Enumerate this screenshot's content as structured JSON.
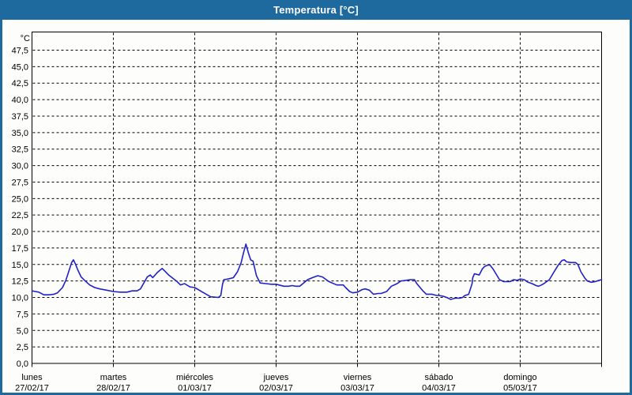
{
  "window": {
    "title": "Temperatura [°C]"
  },
  "colors": {
    "titlebar_bg": "#1e6a9e",
    "frame_border": "#1e6a9e",
    "chart_bg": "#fdfdfc",
    "plot_border": "#000000",
    "grid": "#000000",
    "text": "#000000",
    "series_line": "#2121c8"
  },
  "chart_data": {
    "type": "line",
    "title": "Temperatura [°C]",
    "grid": "dashed, horizontal every 2.5 °C and vertical at day boundaries",
    "legend": "none",
    "y_axis": {
      "unit_label": "°C",
      "min": 0,
      "max": 50,
      "tick_min": 0,
      "tick_max": 47.5,
      "tick_step": 2.5,
      "decimal_separator": ","
    },
    "x_axis": {
      "hours_total": 168,
      "days": [
        {
          "name": "lunes",
          "date": "27/02/17"
        },
        {
          "name": "martes",
          "date": "28/02/17"
        },
        {
          "name": "miércoles",
          "date": "01/03/17"
        },
        {
          "name": "jueves",
          "date": "02/03/17"
        },
        {
          "name": "viernes",
          "date": "03/03/17"
        },
        {
          "name": "sábado",
          "date": "04/03/17"
        },
        {
          "name": "domingo",
          "date": "05/03/17"
        }
      ]
    },
    "series": [
      {
        "name": "Temperatura",
        "color": "#2121c8",
        "points_hours_celsius": [
          [
            0,
            11.0
          ],
          [
            1,
            10.9
          ],
          [
            2,
            10.8
          ],
          [
            3.5,
            10.4
          ],
          [
            5,
            10.4
          ],
          [
            6.5,
            10.5
          ],
          [
            7.5,
            10.7
          ],
          [
            9,
            11.5
          ],
          [
            10,
            12.6
          ],
          [
            11,
            14.2
          ],
          [
            11.7,
            15.3
          ],
          [
            12.2,
            15.7
          ],
          [
            12.8,
            15.1
          ],
          [
            13.5,
            14.2
          ],
          [
            14.5,
            13.1
          ],
          [
            15.5,
            12.6
          ],
          [
            17,
            11.9
          ],
          [
            18.5,
            11.5
          ],
          [
            20,
            11.3
          ],
          [
            22,
            11.1
          ],
          [
            24,
            10.9
          ],
          [
            26,
            10.8
          ],
          [
            28,
            10.8
          ],
          [
            29.5,
            11.0
          ],
          [
            31,
            11.0
          ],
          [
            32,
            11.3
          ],
          [
            34,
            13.1
          ],
          [
            34.9,
            13.4
          ],
          [
            35.6,
            13.0
          ],
          [
            37,
            13.8
          ],
          [
            38.4,
            14.4
          ],
          [
            40.3,
            13.4
          ],
          [
            42.6,
            12.5
          ],
          [
            43.8,
            11.9
          ],
          [
            45,
            12.1
          ],
          [
            46.6,
            11.6
          ],
          [
            48,
            11.5
          ],
          [
            50.3,
            10.8
          ],
          [
            52.7,
            10.1
          ],
          [
            55,
            10.0
          ],
          [
            55.7,
            10.3
          ],
          [
            56.2,
            12.0
          ],
          [
            56.6,
            12.7
          ],
          [
            57.8,
            12.8
          ],
          [
            59.4,
            13.0
          ],
          [
            60.6,
            13.9
          ],
          [
            61.7,
            15.3
          ],
          [
            62.4,
            16.8
          ],
          [
            63.1,
            18.1
          ],
          [
            63.8,
            16.8
          ],
          [
            64.5,
            15.7
          ],
          [
            65.2,
            15.5
          ],
          [
            66.2,
            13.3
          ],
          [
            67.3,
            12.2
          ],
          [
            68.9,
            12.1
          ],
          [
            70.6,
            12.0
          ],
          [
            72,
            12.0
          ],
          [
            74.3,
            11.7
          ],
          [
            75.7,
            11.7
          ],
          [
            76.7,
            11.8
          ],
          [
            77.8,
            11.7
          ],
          [
            79,
            11.7
          ],
          [
            81.3,
            12.7
          ],
          [
            82.7,
            13.0
          ],
          [
            84.3,
            13.3
          ],
          [
            85.7,
            13.1
          ],
          [
            87.6,
            12.4
          ],
          [
            89.9,
            11.9
          ],
          [
            91.8,
            11.9
          ],
          [
            92.5,
            11.5
          ],
          [
            93.7,
            10.9
          ],
          [
            94.6,
            10.7
          ],
          [
            96,
            10.8
          ],
          [
            97.4,
            11.2
          ],
          [
            98.3,
            11.3
          ],
          [
            99.5,
            11.1
          ],
          [
            100.7,
            10.5
          ],
          [
            102.1,
            10.6
          ],
          [
            103,
            10.6
          ],
          [
            104.6,
            10.9
          ],
          [
            106,
            11.7
          ],
          [
            107.7,
            12.1
          ],
          [
            108.8,
            12.5
          ],
          [
            110.4,
            12.6
          ],
          [
            111.6,
            12.7
          ],
          [
            112.8,
            12.7
          ],
          [
            113.5,
            12.1
          ],
          [
            115.1,
            11.1
          ],
          [
            116.3,
            10.5
          ],
          [
            117.9,
            10.5
          ],
          [
            119.3,
            10.3
          ],
          [
            120,
            10.3
          ],
          [
            121.2,
            10.2
          ],
          [
            122.3,
            10.0
          ],
          [
            123.5,
            9.7
          ],
          [
            124.9,
            9.9
          ],
          [
            126.3,
            9.9
          ],
          [
            127,
            10.0
          ],
          [
            127.7,
            10.3
          ],
          [
            128.4,
            10.4
          ],
          [
            128.8,
            10.5
          ],
          [
            129.8,
            12.1
          ],
          [
            130,
            13.0
          ],
          [
            130.5,
            13.6
          ],
          [
            131.2,
            13.5
          ],
          [
            131.9,
            13.4
          ],
          [
            132.8,
            14.3
          ],
          [
            133.5,
            14.7
          ],
          [
            134.4,
            14.9
          ],
          [
            135.1,
            14.9
          ],
          [
            136,
            14.3
          ],
          [
            136.7,
            13.7
          ],
          [
            137.9,
            12.7
          ],
          [
            139.1,
            12.4
          ],
          [
            140.3,
            12.4
          ],
          [
            141,
            12.4
          ],
          [
            142.1,
            12.7
          ],
          [
            143.1,
            12.6
          ],
          [
            144,
            12.8
          ],
          [
            145.2,
            12.7
          ],
          [
            146.3,
            12.3
          ],
          [
            147.5,
            12.1
          ],
          [
            148.7,
            11.8
          ],
          [
            149.4,
            11.7
          ],
          [
            150.3,
            11.9
          ],
          [
            151,
            12.1
          ],
          [
            152.6,
            12.7
          ],
          [
            154,
            13.9
          ],
          [
            155.2,
            14.9
          ],
          [
            156.3,
            15.6
          ],
          [
            157,
            15.7
          ],
          [
            157.7,
            15.4
          ],
          [
            158.9,
            15.3
          ],
          [
            160.3,
            15.3
          ],
          [
            161,
            15.0
          ],
          [
            161.9,
            13.9
          ],
          [
            163.1,
            12.9
          ],
          [
            163.8,
            12.5
          ],
          [
            165,
            12.3
          ],
          [
            166.1,
            12.4
          ],
          [
            167.3,
            12.6
          ],
          [
            168,
            12.7
          ]
        ]
      }
    ]
  }
}
